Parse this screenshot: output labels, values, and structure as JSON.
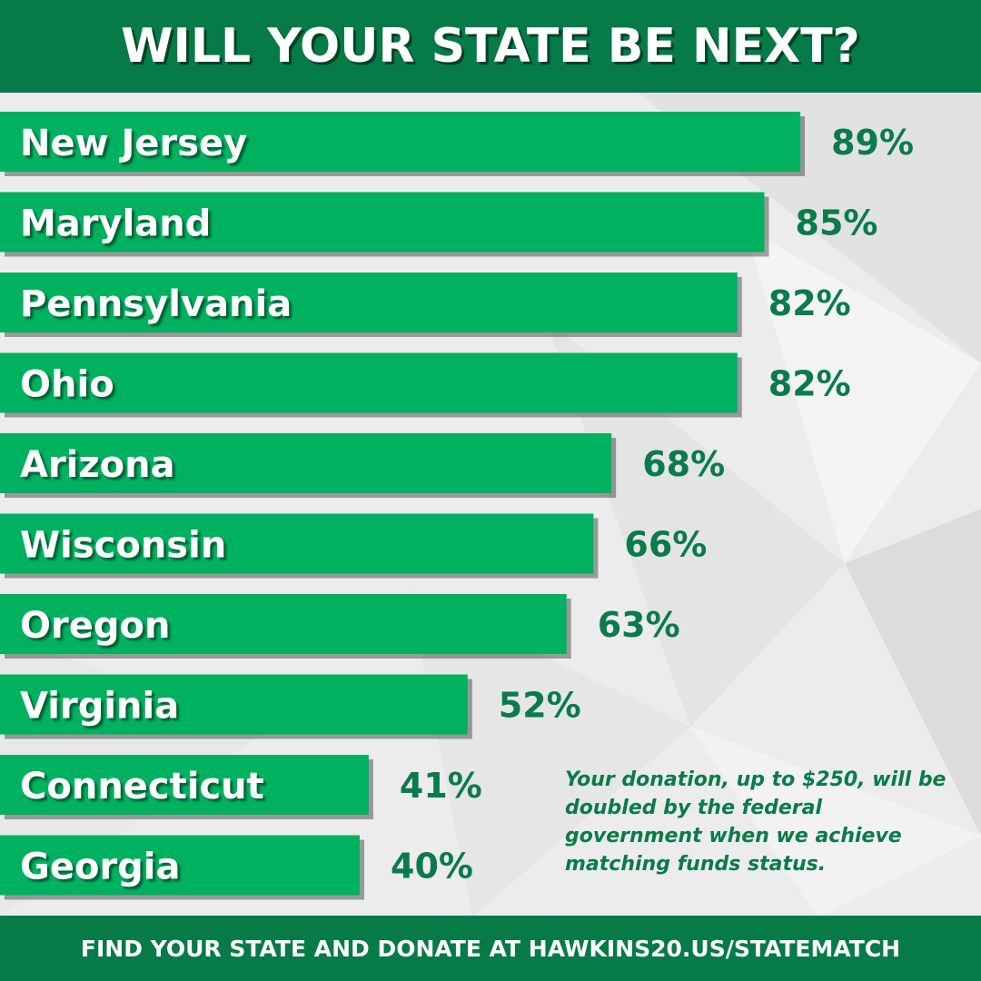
{
  "header": {
    "title": "WILL YOUR STATE BE NEXT?"
  },
  "footer": {
    "text": "FIND YOUR STATE AND DONATE AT HAWKINS20.US/STATEMATCH"
  },
  "note": {
    "text": "Your donation, up to $250, will be doubled by the federal government when we achieve matching funds status."
  },
  "colors": {
    "bar": "#00b15f",
    "brand_green": "#067a47",
    "value_text": "#0a7b4a",
    "bar_label": "#ffffff"
  },
  "chart_data": {
    "type": "bar",
    "orientation": "horizontal",
    "categories": [
      "New Jersey",
      "Maryland",
      "Pennsylvania",
      "Ohio",
      "Arizona",
      "Wisconsin",
      "Oregon",
      "Virginia",
      "Connecticut",
      "Georgia"
    ],
    "values": [
      89,
      85,
      82,
      82,
      68,
      66,
      63,
      52,
      41,
      40
    ],
    "value_labels": [
      "89%",
      "85%",
      "82%",
      "82%",
      "68%",
      "66%",
      "63%",
      "52%",
      "41%",
      "40%"
    ],
    "unit": "%",
    "xlim": [
      0,
      100
    ],
    "grid": false,
    "legend": "none"
  }
}
